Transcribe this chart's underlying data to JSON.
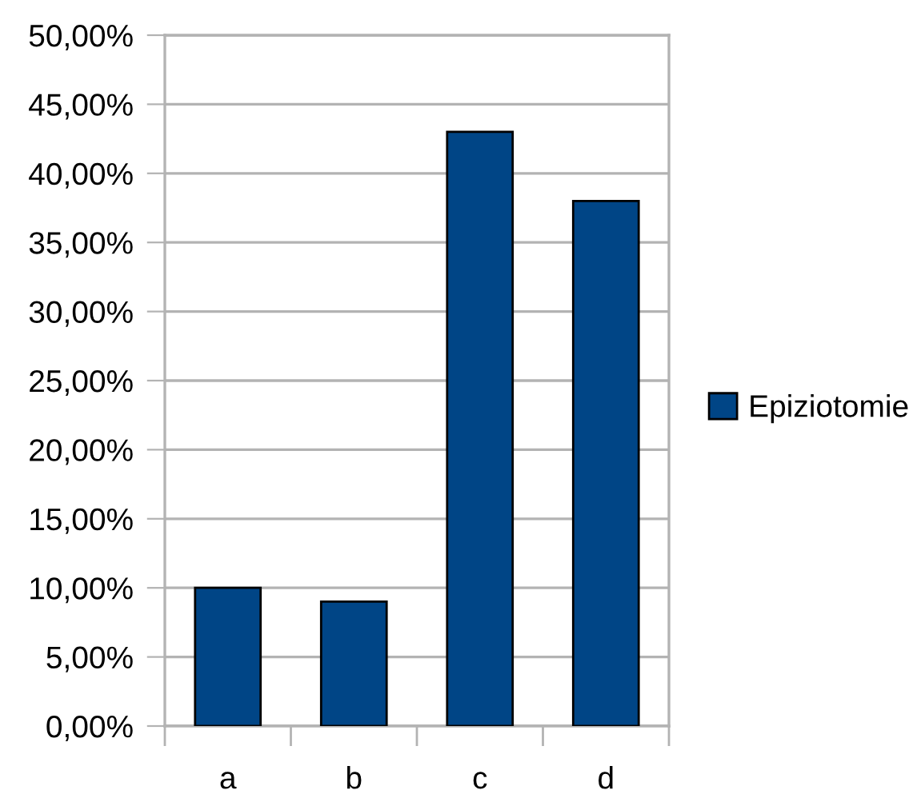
{
  "chart_data": {
    "type": "bar",
    "categories": [
      "a",
      "b",
      "c",
      "d"
    ],
    "series": [
      {
        "name": "Epiziotomie",
        "color": "#004586",
        "values": [
          10,
          9,
          43,
          38
        ]
      }
    ],
    "ylim": [
      0,
      50
    ],
    "yticks": [
      {
        "value": 0,
        "label": "0,00%"
      },
      {
        "value": 5,
        "label": "5,00%"
      },
      {
        "value": 10,
        "label": "10,00%"
      },
      {
        "value": 15,
        "label": "15,00%"
      },
      {
        "value": 20,
        "label": "20,00%"
      },
      {
        "value": 25,
        "label": "25,00%"
      },
      {
        "value": 30,
        "label": "30,00%"
      },
      {
        "value": 35,
        "label": "35,00%"
      },
      {
        "value": 40,
        "label": "40,00%"
      },
      {
        "value": 45,
        "label": "45,00%"
      },
      {
        "value": 50,
        "label": "50,00%"
      }
    ],
    "grid": "y",
    "legend": "right"
  }
}
